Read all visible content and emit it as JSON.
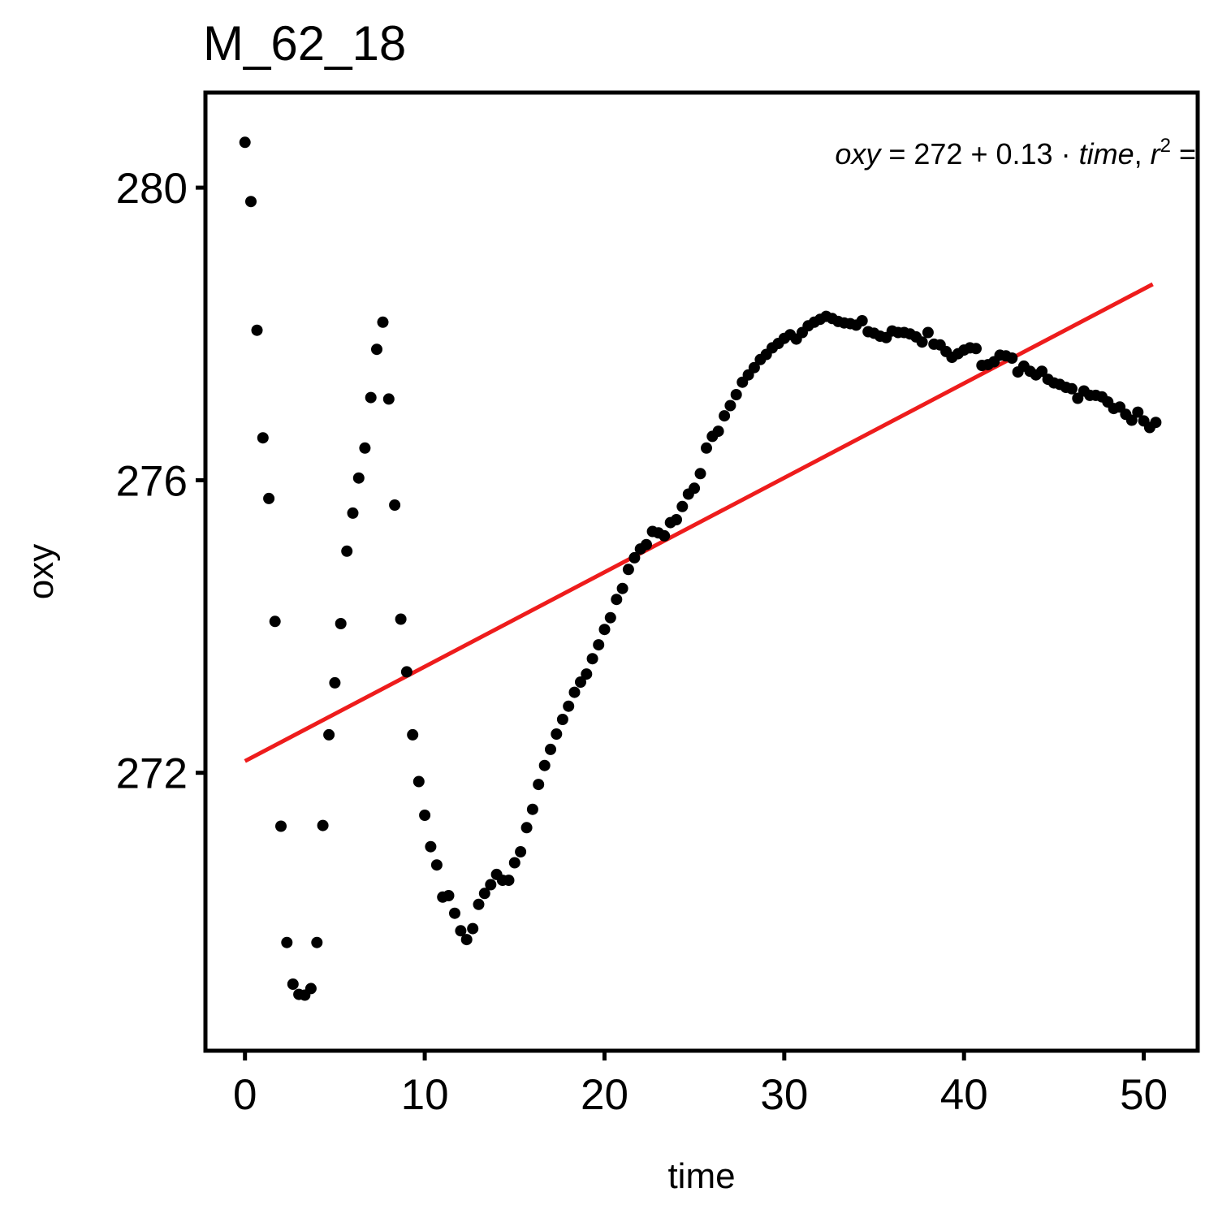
{
  "chart_data": {
    "type": "scatter",
    "title": "M_62_18",
    "xlabel": "time",
    "ylabel": "oxy",
    "xlim": [
      -2.2,
      53
    ],
    "ylim": [
      268.2,
      281.3
    ],
    "xticks": [
      0,
      10,
      20,
      30,
      40,
      50
    ],
    "yticks": [
      272,
      276,
      280
    ],
    "grid": false,
    "annotation": {
      "lhs": "oxy",
      "eq": " = ",
      "intercept": "272",
      "plus": " + ",
      "slope": "0.13",
      "dot": " · ",
      "var": "time",
      "sep": ",  ",
      "r": "r",
      "r_exp": "2",
      "r_eq": " ="
    },
    "fit_line": {
      "color": "#ee1c1c",
      "x": [
        0,
        50.5
      ],
      "y": [
        272.16,
        278.68
      ]
    },
    "point_color": "#000000",
    "series": [
      {
        "x": [
          0.0,
          0.33,
          0.67,
          1.0,
          1.33,
          1.67,
          2.0,
          2.33,
          2.67,
          3.0,
          3.33,
          3.67,
          4.0,
          4.33,
          4.67,
          5.0,
          5.33,
          5.67,
          6.0,
          6.33,
          6.67,
          7.0,
          7.33,
          7.67,
          8.0,
          8.33,
          8.67,
          9.0,
          9.33,
          9.67,
          10.0,
          10.33,
          10.67,
          11.0,
          11.33,
          11.67,
          12.0,
          12.33,
          12.67,
          13.0,
          13.33,
          13.67,
          14.0,
          14.33,
          14.67,
          15.0,
          15.33,
          15.67,
          16.0,
          16.33,
          16.67,
          17.0,
          17.33,
          17.67,
          18.0,
          18.33,
          18.67,
          19.0,
          19.33,
          19.67,
          20.0,
          20.33,
          20.67,
          21.0,
          21.33,
          21.67,
          22.0,
          22.33,
          22.67,
          23.0,
          23.33,
          23.67,
          24.0,
          24.33,
          24.67,
          25.0,
          25.33,
          25.67,
          26.0,
          26.33,
          26.67,
          27.0,
          27.33,
          27.67,
          28.0,
          28.33,
          28.67,
          29.0,
          29.33,
          29.67,
          30.0,
          30.33,
          30.67,
          31.0,
          31.33,
          31.67,
          32.0,
          32.33,
          32.67,
          33.0,
          33.33,
          33.67,
          34.0,
          34.33,
          34.67,
          35.0,
          35.33,
          35.67,
          36.0,
          36.33,
          36.67,
          37.0,
          37.33,
          37.67,
          38.0,
          38.33,
          38.67,
          39.0,
          39.33,
          39.67,
          40.0,
          40.33,
          40.67,
          41.0,
          41.33,
          41.67,
          42.0,
          42.33,
          42.67,
          43.0,
          43.33,
          43.67,
          44.0,
          44.33,
          44.67,
          45.0,
          45.33,
          45.67,
          46.0,
          46.33,
          46.67,
          47.0,
          47.33,
          47.67,
          48.0,
          48.33,
          48.67,
          49.0,
          49.33,
          49.67,
          50.0,
          50.33,
          50.67
        ],
        "y": [
          280.62,
          279.81,
          278.05,
          276.58,
          275.75,
          274.07,
          271.27,
          269.68,
          269.11,
          268.97,
          268.96,
          269.05,
          269.68,
          271.28,
          272.52,
          273.23,
          274.04,
          275.03,
          275.55,
          276.03,
          276.44,
          277.13,
          277.79,
          278.16,
          277.11,
          275.66,
          274.1,
          273.38,
          272.52,
          271.88,
          271.42,
          270.99,
          270.74,
          270.3,
          270.32,
          270.08,
          269.84,
          269.72,
          269.87,
          270.2,
          270.35,
          270.47,
          270.61,
          270.53,
          270.53,
          270.77,
          270.92,
          271.25,
          271.5,
          271.84,
          272.1,
          272.32,
          272.53,
          272.73,
          272.91,
          273.1,
          273.24,
          273.35,
          273.56,
          273.75,
          273.96,
          274.12,
          274.37,
          274.52,
          274.78,
          274.94,
          275.06,
          275.12,
          275.3,
          275.28,
          275.24,
          275.42,
          275.46,
          275.64,
          275.81,
          275.89,
          276.09,
          276.44,
          276.6,
          276.67,
          276.88,
          277.02,
          277.17,
          277.34,
          277.44,
          277.54,
          277.65,
          277.72,
          277.81,
          277.87,
          277.94,
          277.99,
          277.93,
          278.02,
          278.11,
          278.16,
          278.2,
          278.24,
          278.21,
          278.17,
          278.15,
          278.14,
          278.12,
          278.18,
          278.03,
          278.01,
          277.97,
          277.95,
          278.04,
          278.02,
          278.02,
          278.0,
          277.96,
          277.89,
          278.02,
          277.86,
          277.85,
          277.76,
          277.68,
          277.73,
          277.78,
          277.81,
          277.8,
          277.57,
          277.58,
          277.62,
          277.71,
          277.7,
          277.67,
          277.48,
          277.56,
          277.49,
          277.44,
          277.49,
          277.38,
          277.33,
          277.31,
          277.27,
          277.25,
          277.12,
          277.22,
          277.16,
          277.16,
          277.14,
          277.07,
          276.98,
          277.0,
          276.9,
          276.82,
          276.93,
          276.81,
          276.72,
          276.79
        ]
      }
    ]
  }
}
